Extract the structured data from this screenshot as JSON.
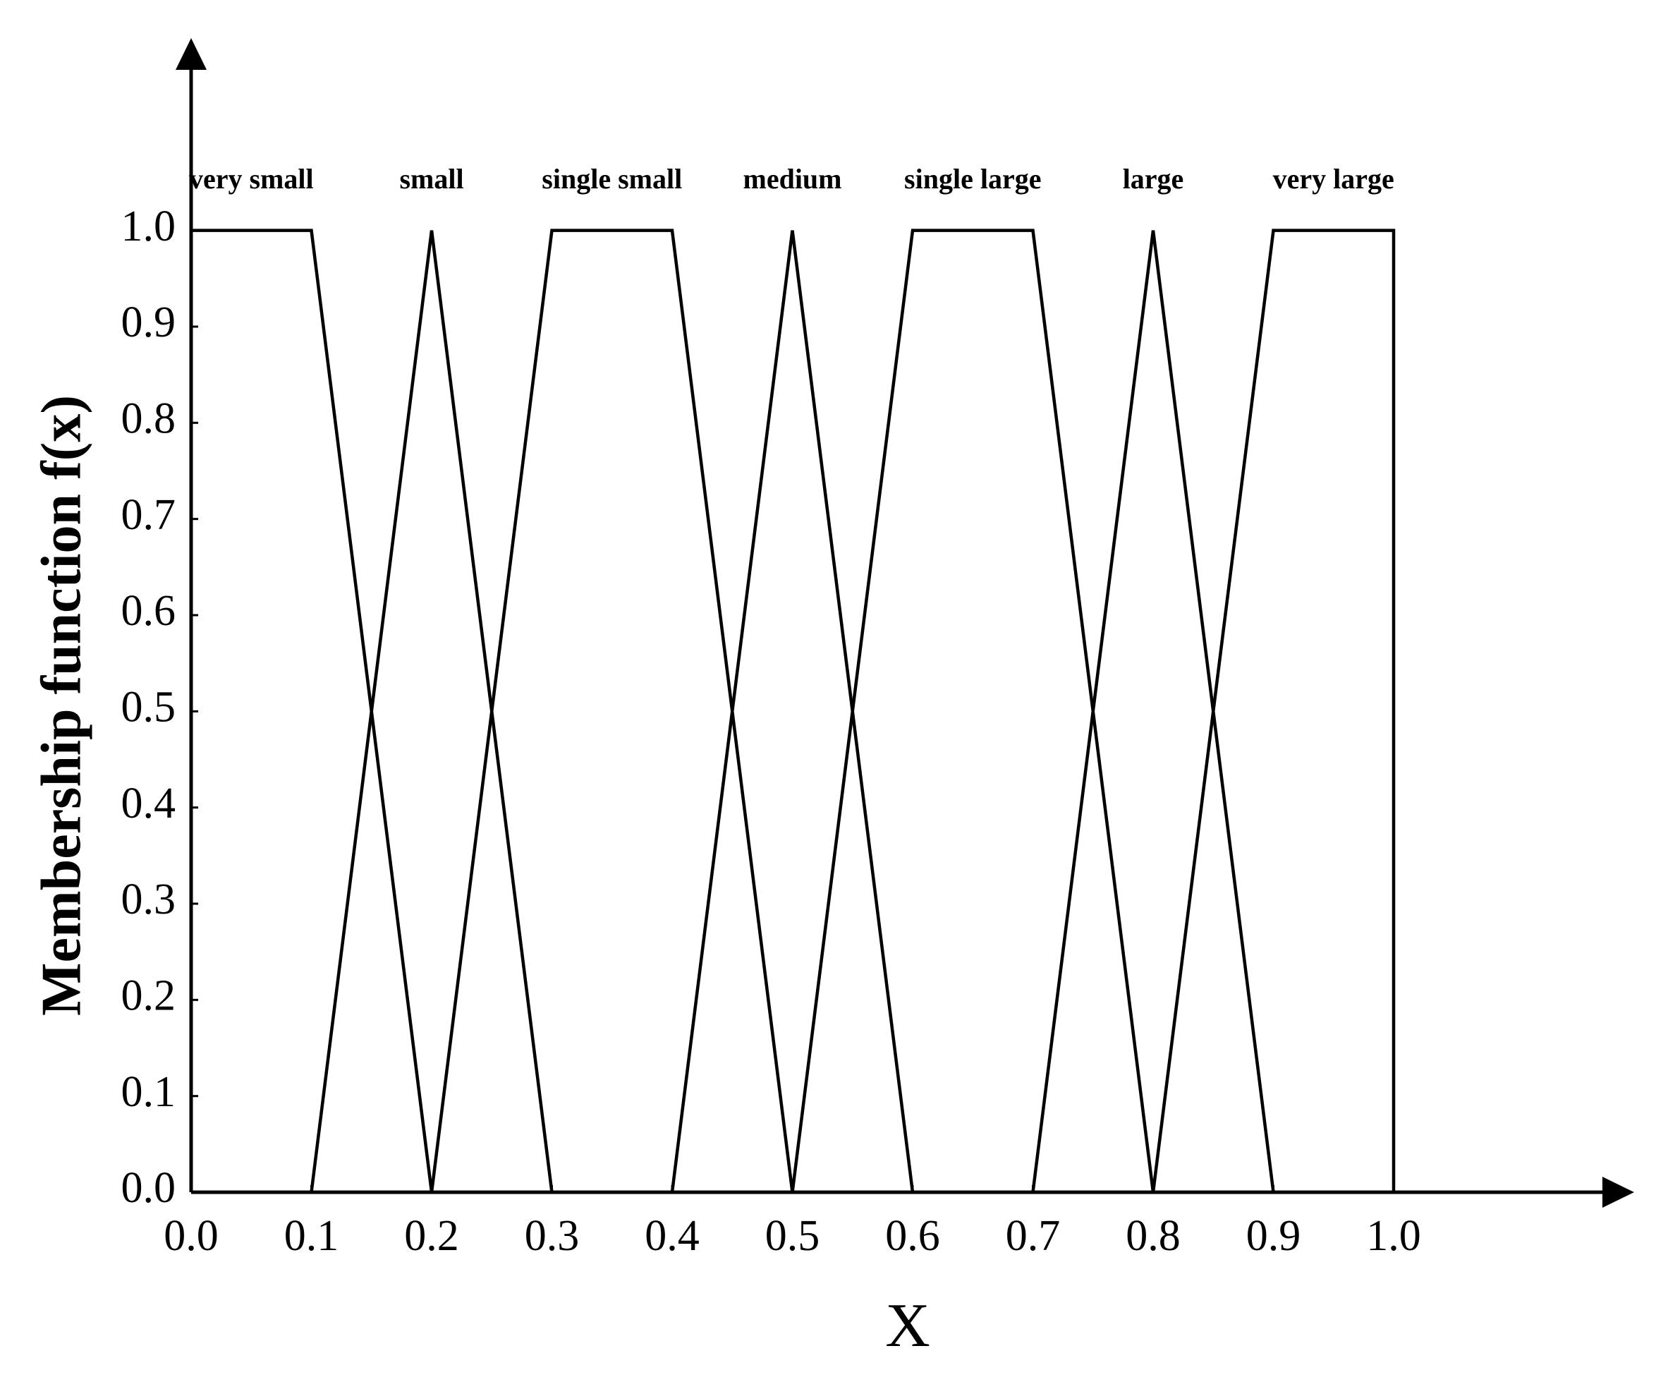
{
  "chart_data": {
    "type": "line",
    "ylabel": "Membership function f(x)",
    "xlabel": "X",
    "xlim": [
      0,
      1.2
    ],
    "ylim": [
      0,
      1.2
    ],
    "xticks": [
      {
        "value": 0,
        "label": "0.0"
      },
      {
        "value": 0.1,
        "label": "0.1"
      },
      {
        "value": 0.2,
        "label": "0.2"
      },
      {
        "value": 0.3,
        "label": "0.3"
      },
      {
        "value": 0.4,
        "label": "0.4"
      },
      {
        "value": 0.5,
        "label": "0.5"
      },
      {
        "value": 0.6,
        "label": "0.6"
      },
      {
        "value": 0.7,
        "label": "0.7"
      },
      {
        "value": 0.8,
        "label": "0.8"
      },
      {
        "value": 0.9,
        "label": "0.9"
      },
      {
        "value": 1,
        "label": "1.0"
      }
    ],
    "yticks": [
      {
        "value": 0,
        "label": "0.0"
      },
      {
        "value": 0.1,
        "label": "0.1"
      },
      {
        "value": 0.2,
        "label": "0.2"
      },
      {
        "value": 0.3,
        "label": "0.3"
      },
      {
        "value": 0.4,
        "label": "0.4"
      },
      {
        "value": 0.5,
        "label": "0.5"
      },
      {
        "value": 0.6,
        "label": "0.6"
      },
      {
        "value": 0.7,
        "label": "0.7"
      },
      {
        "value": 0.8,
        "label": "0.8"
      },
      {
        "value": 0.9,
        "label": "0.9"
      },
      {
        "value": 1,
        "label": "1.0"
      }
    ],
    "series": [
      {
        "name": "very small",
        "color": "#000000",
        "x": [
          0,
          0.1,
          0.2
        ],
        "values": [
          1,
          1,
          0
        ]
      },
      {
        "name": "small",
        "color": "#000000",
        "x": [
          0.1,
          0.2,
          0.3
        ],
        "values": [
          0,
          1,
          0
        ]
      },
      {
        "name": "single small",
        "color": "#000000",
        "x": [
          0.2,
          0.3,
          0.4,
          0.5
        ],
        "values": [
          0,
          1,
          1,
          0
        ]
      },
      {
        "name": "medium",
        "color": "#000000",
        "x": [
          0.4,
          0.5,
          0.6
        ],
        "values": [
          0,
          1,
          0
        ]
      },
      {
        "name": "single large",
        "color": "#000000",
        "x": [
          0.5,
          0.6,
          0.7,
          0.8
        ],
        "values": [
          0,
          1,
          1,
          0
        ]
      },
      {
        "name": "large",
        "color": "#000000",
        "x": [
          0.7,
          0.8,
          0.9
        ],
        "values": [
          0,
          1,
          0
        ]
      },
      {
        "name": "very large",
        "color": "#000000",
        "x": [
          0.8,
          0.9,
          1,
          1
        ],
        "values": [
          0,
          1,
          1,
          0
        ]
      }
    ]
  }
}
